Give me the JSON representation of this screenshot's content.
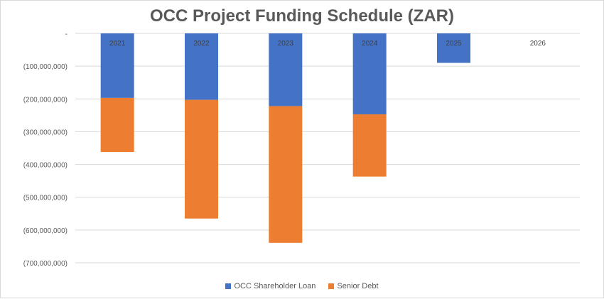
{
  "chart_data": {
    "type": "bar",
    "stacked": true,
    "title": "OCC Project Funding Schedule (ZAR)",
    "xlabel": "",
    "ylabel": "",
    "categories": [
      "2021",
      "2022",
      "2023",
      "2024",
      "2025",
      "2026"
    ],
    "ylim": [
      -700000000,
      0
    ],
    "yticks": [
      0,
      -100000000,
      -200000000,
      -300000000,
      -400000000,
      -500000000,
      -600000000,
      -700000000
    ],
    "ytick_labels": [
      "-",
      "(100,000,000)",
      "(200,000,000)",
      "(300,000,000)",
      "(400,000,000)",
      "(500,000,000)",
      "(600,000,000)",
      "(700,000,000)"
    ],
    "grid": true,
    "legend_position": "bottom",
    "series": [
      {
        "name": "OCC Shareholder Loan",
        "color": "#4472C4",
        "values": [
          -197000000,
          -203000000,
          -222000000,
          -247000000,
          -90000000,
          0
        ]
      },
      {
        "name": "Senior Debt",
        "color": "#ED7D31",
        "values": [
          -165000000,
          -362000000,
          -417000000,
          -190000000,
          0,
          0
        ]
      }
    ]
  }
}
